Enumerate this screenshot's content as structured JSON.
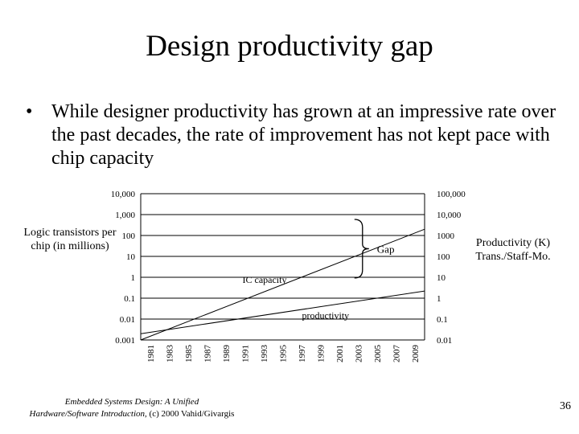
{
  "slide": {
    "title": "Design productivity gap",
    "bullet_marker": "•",
    "bullet_text": "While designer productivity has grown at an impressive rate over the past decades, the rate of improvement has not kept pace with chip capacity",
    "footer_line1": "Embedded Systems Design: A Unified",
    "footer_line2": "Hardware/Software Introduction,",
    "footer_copyright": "(c) 2000 Vahid/Givargis",
    "page_number": "36"
  },
  "chart_data": {
    "type": "line",
    "title": "",
    "y_left_label": "Logic transistors per chip (in millions)",
    "y_right_label": "Productivity (K) Trans./Staff-Mo.",
    "y_left_ticks": [
      "10,000",
      "1,000",
      "100",
      "10",
      "1",
      "0.1",
      "0.01",
      "0.001"
    ],
    "y_right_ticks": [
      "100,000",
      "10,000",
      "1000",
      "100",
      "10",
      "1",
      "0.1",
      "0.01"
    ],
    "x_ticks": [
      "1981",
      "1983",
      "1985",
      "1987",
      "1989",
      "1991",
      "1993",
      "1995",
      "1997",
      "1999",
      "2001",
      "2003",
      "2005",
      "2007",
      "2009"
    ],
    "x_range": [
      1981,
      2009
    ],
    "y_left_range_log10": [
      -3,
      4
    ],
    "series": [
      {
        "name": "IC capacity",
        "axis": "left",
        "x": [
          1981,
          2009
        ],
        "y": [
          0.001,
          200
        ]
      },
      {
        "name": "productivity",
        "axis": "right",
        "x": [
          1981,
          2009
        ],
        "y": [
          0.02,
          2.2
        ]
      }
    ],
    "annotations": [
      {
        "text": "Gap",
        "between": [
          "IC capacity",
          "productivity"
        ],
        "near_x": 2007
      }
    ]
  }
}
